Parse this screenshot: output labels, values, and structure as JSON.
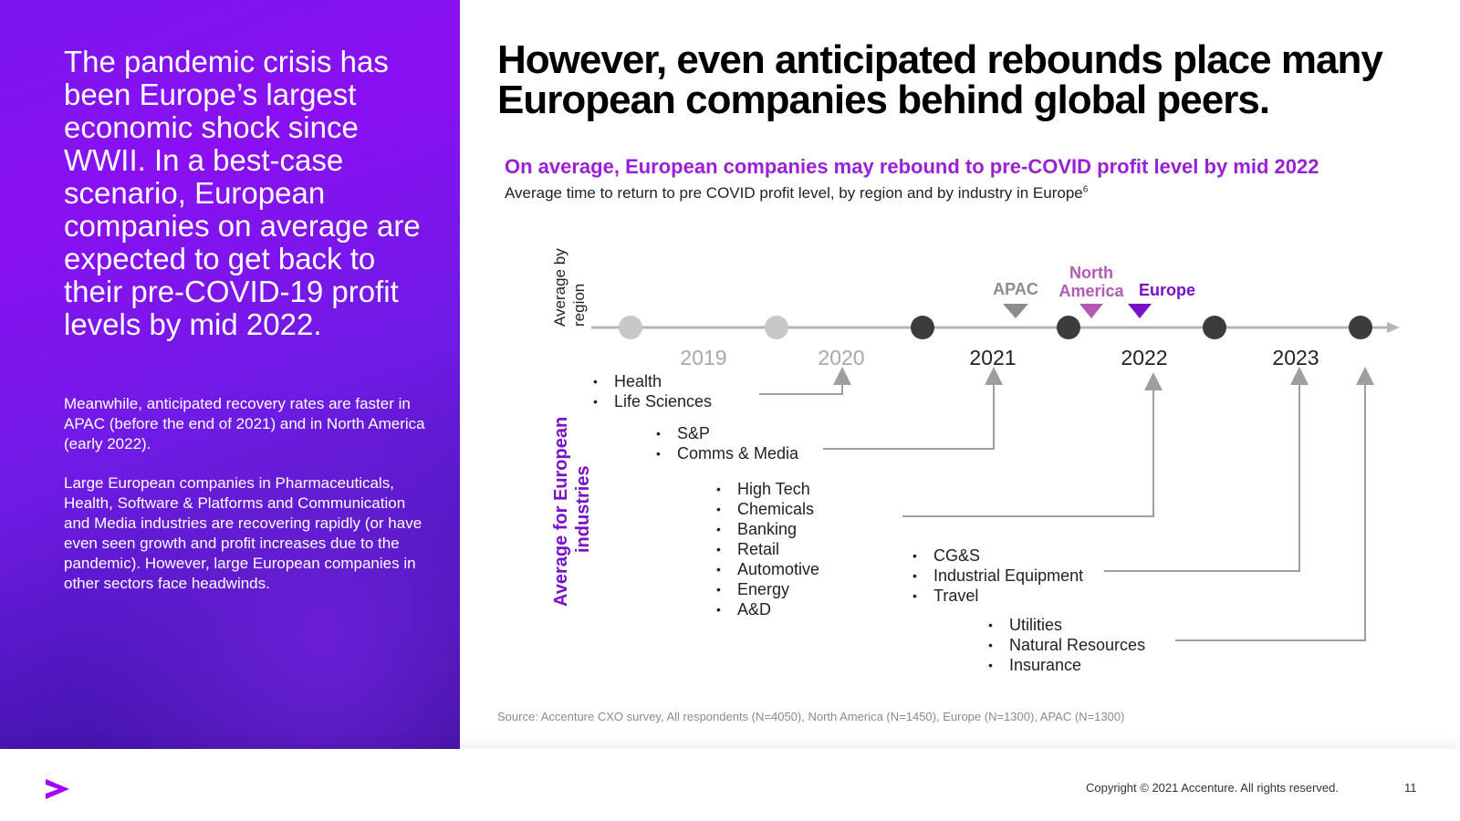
{
  "left": {
    "headline": "The pandemic crisis has been  Europe’s largest economic shock since WWII. In a best-case scenario, European companies on average are expected to get back to their pre-COVID-19 profit levels by mid 2022.",
    "para1": "Meanwhile, anticipated recovery rates are faster in APAC (before the end of 2021) and in North America (early 2022).",
    "para2": "Large European companies in Pharmaceuticals, Health, Software & Platforms and Communication and Media industries are recovering rapidly (or have even seen growth and profit increases due to the pandemic). However, large European companies in other sectors face headwinds."
  },
  "title": "However, even anticipated rebounds place many European companies behind global peers.",
  "subtitle": "On average, European companies may rebound to pre-COVID profit level by mid 2022",
  "caption": "Average time to return to pre COVID profit level, by region and by industry in Europe",
  "caption_sup": "6",
  "axis_labels": {
    "region": [
      "Average by",
      "region"
    ],
    "industries": [
      "Average for European",
      "industries"
    ]
  },
  "years": [
    "2019",
    "2020",
    "2021",
    "2022",
    "2023"
  ],
  "regions": [
    {
      "name": "APAC",
      "color": "#8c8c8c"
    },
    {
      "name": [
        "North",
        "America"
      ],
      "color": "#b35ab3"
    },
    {
      "name": "Europe",
      "color": "#7a10c8"
    }
  ],
  "industry_groups": [
    {
      "items": [
        "Health",
        "Life Sciences"
      ],
      "target": "2020"
    },
    {
      "items": [
        "S&P",
        "Comms & Media"
      ],
      "target": "2021"
    },
    {
      "items": [
        "High Tech",
        "Chemicals",
        "Banking",
        "Retail",
        "Automotive",
        "Energy",
        "A&D"
      ],
      "target": "2022"
    },
    {
      "items": [
        "CG&S",
        "Industrial Equipment",
        "Travel"
      ],
      "target": "2023"
    },
    {
      "items": [
        "Utilities",
        "Natural Resources",
        "Insurance"
      ],
      "target": "2024"
    }
  ],
  "colors": {
    "purple": "#9b1fd6",
    "dark_purple": "#7a10c8",
    "grey": "#9e9e9e",
    "dot_dark": "#3c3c3c",
    "dot_light": "#c8c8c8"
  },
  "source": "Source: Accenture CXO survey, All respondents (N=4050), North America (N=1450), Europe (N=1300), APAC (N=1300)",
  "footer": {
    "copyright": "Copyright © 2021 Accenture. All rights reserved.",
    "page": "11"
  }
}
